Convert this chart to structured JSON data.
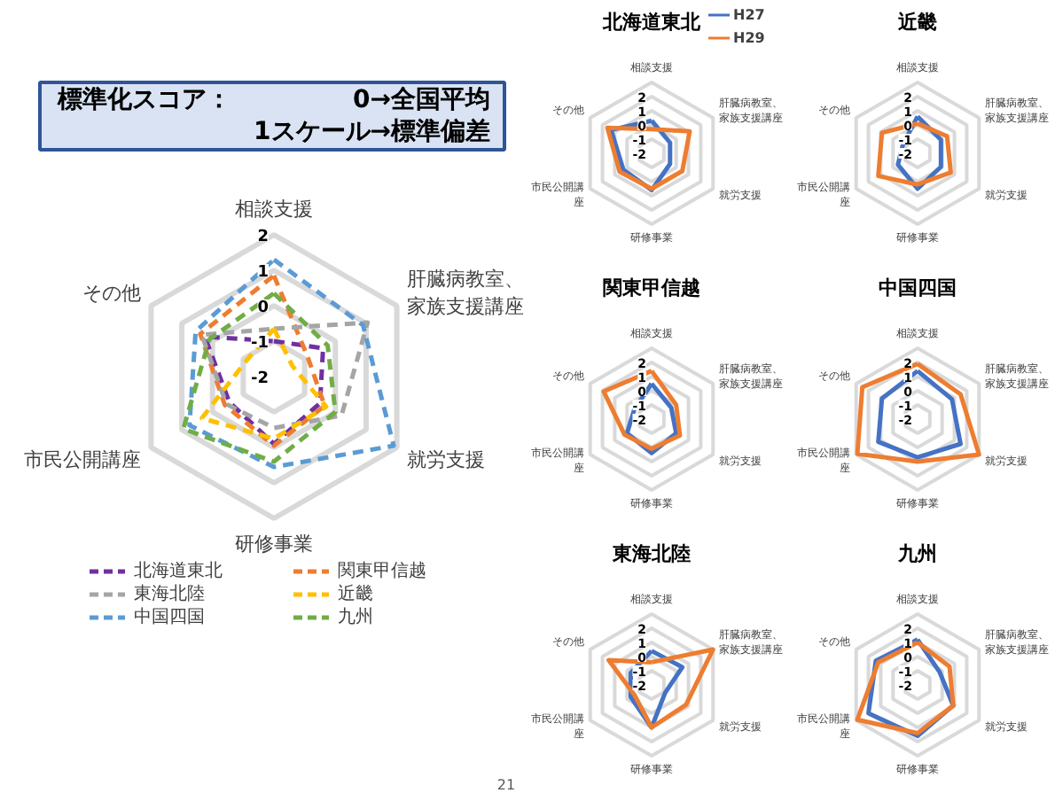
{
  "chart_data": [
    {
      "type": "radar",
      "categories": [
        "相談支援",
        "肝臓病教室、家族支援講座",
        "就労支援",
        "研修事業",
        "市民公開講座",
        "その他"
      ],
      "ylim": [
        -2,
        2
      ],
      "yticks": [
        -2,
        -1,
        0,
        1,
        2
      ],
      "line_style": "dashed",
      "legend": "bottom",
      "annotations": [
        "標準化スコア：",
        "0→全国平均",
        "1スケール→標準偏差",
        "21"
      ],
      "series": [
        {
          "name": "北海道東北",
          "color": "#7030a0",
          "values": [
            -1.0,
            -0.4,
            -0.5,
            -0.1,
            -0.55,
            0.25
          ]
        },
        {
          "name": "関東甲信越",
          "color": "#ed7d31",
          "values": [
            0.85,
            -0.9,
            -0.35,
            -0.05,
            -0.4,
            0.4
          ]
        },
        {
          "name": "東海北陸",
          "color": "#a5a5a5",
          "values": [
            -0.65,
            1.05,
            0.2,
            -0.55,
            -0.45,
            0.35
          ]
        },
        {
          "name": "近畿",
          "color": "#ffc000",
          "values": [
            -0.65,
            -1.4,
            -0.3,
            -0.25,
            0.35,
            -1.1
          ]
        },
        {
          "name": "中国四国",
          "color": "#5b9bd5",
          "values": [
            1.3,
            0.9,
            1.9,
            0.55,
            0.75,
            0.55
          ]
        },
        {
          "name": "九州",
          "color": "#70ad47",
          "values": [
            0.35,
            -0.25,
            0.0,
            0.4,
            0.95,
            0.1
          ]
        }
      ]
    },
    {
      "type": "radar",
      "title": "北海道東北",
      "categories": [
        "相談支援",
        "肝臓病教室、家族支援講座",
        "就労支援",
        "研修事業",
        "市民公開講座",
        "その他"
      ],
      "ylim": [
        -2,
        3
      ],
      "yticks": [
        -2,
        -1,
        0,
        1,
        2
      ],
      "line_style": "solid",
      "legend": "top right",
      "series": [
        {
          "name": "H27",
          "color": "#4472c4",
          "values": [
            0.3,
            -0.5,
            -0.5,
            0.6,
            0.3,
            1.3
          ]
        },
        {
          "name": "H29",
          "color": "#ed7d31",
          "values": [
            -0.3,
            1.1,
            0.5,
            0.5,
            0.6,
            1.6
          ]
        }
      ]
    },
    {
      "type": "radar",
      "title": "近畿",
      "categories": [
        "相談支援",
        "肝臓病教室、家族支援講座",
        "就労支援",
        "研修事業",
        "市民公開講座",
        "その他"
      ],
      "ylim": [
        -2,
        3
      ],
      "yticks": [
        -2,
        -1,
        0,
        1,
        2
      ],
      "line_style": "solid",
      "series": [
        {
          "color": "#4472c4",
          "values": [
            0.6,
            -0.1,
            -0.1,
            0.5,
            -0.4,
            -0.8
          ]
        },
        {
          "color": "#ed7d31",
          "values": [
            0.1,
            0.4,
            0.7,
            0.2,
            1.2,
            0.9
          ]
        }
      ]
    },
    {
      "type": "radar",
      "title": "関東甲信越",
      "categories": [
        "相談支援",
        "肝臓病教室、家族支援講座",
        "就労支援",
        "研修事業",
        "市民公開講座",
        "その他"
      ],
      "ylim": [
        -2,
        3
      ],
      "yticks": [
        -2,
        -1,
        0,
        1,
        2
      ],
      "line_style": "solid",
      "series": [
        {
          "color": "#4472c4",
          "values": [
            0.5,
            -0.4,
            0.0,
            0.4,
            0.0,
            -0.6
          ]
        },
        {
          "color": "#ed7d31",
          "values": [
            1.4,
            0.0,
            0.3,
            0.1,
            0.2,
            1.9
          ]
        }
      ]
    },
    {
      "type": "radar",
      "title": "中国四国",
      "categories": [
        "相談支援",
        "肝臓病教室、家族支援講座",
        "就労支援",
        "研修事業",
        "市民公開講座",
        "その他"
      ],
      "ylim": [
        -2,
        3
      ],
      "yticks": [
        -2,
        -1,
        0,
        1,
        2
      ],
      "line_style": "solid",
      "series": [
        {
          "color": "#4472c4",
          "values": [
            1.4,
            0.8,
            1.5,
            0.7,
            1.2,
            0.9
          ]
        },
        {
          "color": "#ed7d31",
          "values": [
            1.9,
            1.5,
            3.0,
            1.0,
            2.9,
            2.5
          ]
        }
      ]
    },
    {
      "type": "radar",
      "title": "東海北陸",
      "categories": [
        "相談支援",
        "肝臓病教室、家族支援講座",
        "就労支援",
        "研修事業",
        "市民公開講座",
        "その他"
      ],
      "ylim": [
        -2,
        3
      ],
      "yticks": [
        -2,
        -1,
        0,
        1,
        2
      ],
      "line_style": "solid",
      "series": [
        {
          "color": "#4472c4",
          "values": [
            0.4,
            0.5,
            -0.9,
            1.0,
            -0.3,
            -0.3
          ]
        },
        {
          "color": "#ed7d31",
          "values": [
            -0.4,
            3.0,
            0.8,
            1.0,
            -0.6,
            1.5
          ]
        }
      ]
    },
    {
      "type": "radar",
      "title": "九州",
      "categories": [
        "相談支援",
        "肝臓病教室、家族支援講座",
        "就労支援",
        "研修事業",
        "市民公開講座",
        "その他"
      ],
      "ylim": [
        -2,
        3
      ],
      "yticks": [
        -2,
        -1,
        0,
        1,
        2
      ],
      "line_style": "solid",
      "series": [
        {
          "color": "#4472c4",
          "values": [
            1.2,
            -0.2,
            0.9,
            1.6,
            2.0,
            1.4
          ]
        },
        {
          "color": "#ed7d31",
          "values": [
            1.0,
            0.6,
            0.9,
            1.4,
            2.9,
            1.2
          ]
        }
      ]
    }
  ]
}
